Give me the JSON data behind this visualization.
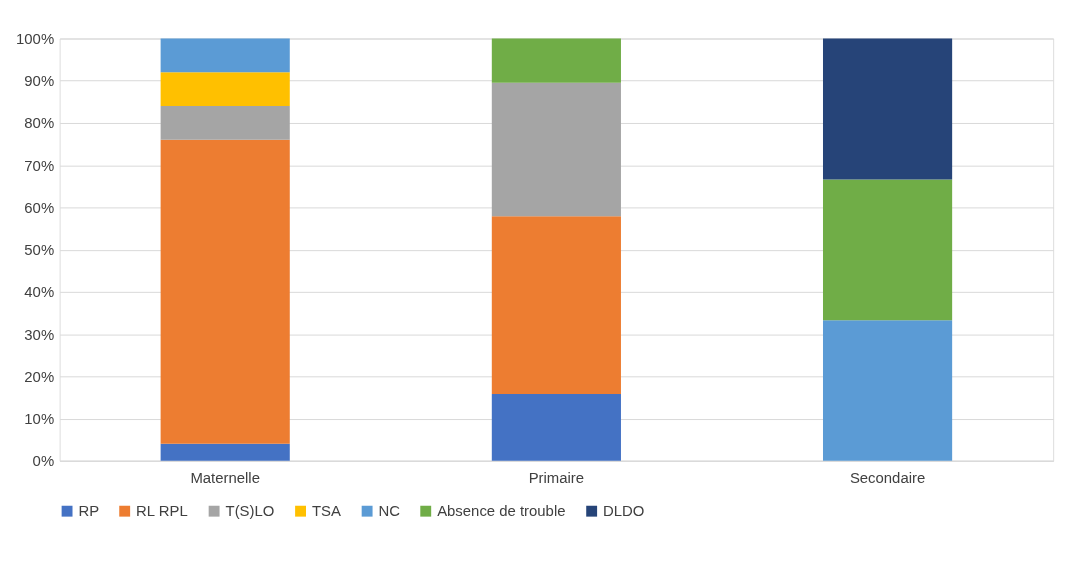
{
  "chart_data": {
    "type": "bar",
    "stacked": true,
    "categories": [
      "Maternelle",
      "Primaire",
      "Secondaire"
    ],
    "series": [
      {
        "name": "RP",
        "color": "#4472c4",
        "values": [
          4,
          15.8,
          null
        ]
      },
      {
        "name": "RL RPL",
        "color": "#ed7d31",
        "values": [
          72,
          42.1,
          null
        ]
      },
      {
        "name": "T(S)LO",
        "color": "#a5a5a5",
        "values": [
          8,
          31.6,
          null
        ]
      },
      {
        "name": "TSA",
        "color": "#ffc000",
        "values": [
          8,
          null,
          null
        ]
      },
      {
        "name": "NC",
        "color": "#5b9bd5",
        "values": [
          8,
          null,
          33.3
        ]
      },
      {
        "name": "Absence de trouble",
        "color": "#70ad47",
        "values": [
          null,
          10.5,
          33.3
        ]
      },
      {
        "name": "DLDO",
        "color": "#264478",
        "values": [
          null,
          null,
          33.4
        ]
      }
    ],
    "ylim": [
      0,
      100
    ],
    "yticks": [
      {
        "value": 0,
        "label": "0%"
      },
      {
        "value": 10,
        "label": "10%"
      },
      {
        "value": 20,
        "label": "20%"
      },
      {
        "value": 30,
        "label": "30%"
      },
      {
        "value": 40,
        "label": "40%"
      },
      {
        "value": 50,
        "label": "50%"
      },
      {
        "value": 60,
        "label": "60%"
      },
      {
        "value": 70,
        "label": "70%"
      },
      {
        "value": 80,
        "label": "80%"
      },
      {
        "value": 90,
        "label": "90%"
      },
      {
        "value": 100,
        "label": "100%"
      }
    ],
    "grid": "y",
    "legend": "bottom"
  }
}
